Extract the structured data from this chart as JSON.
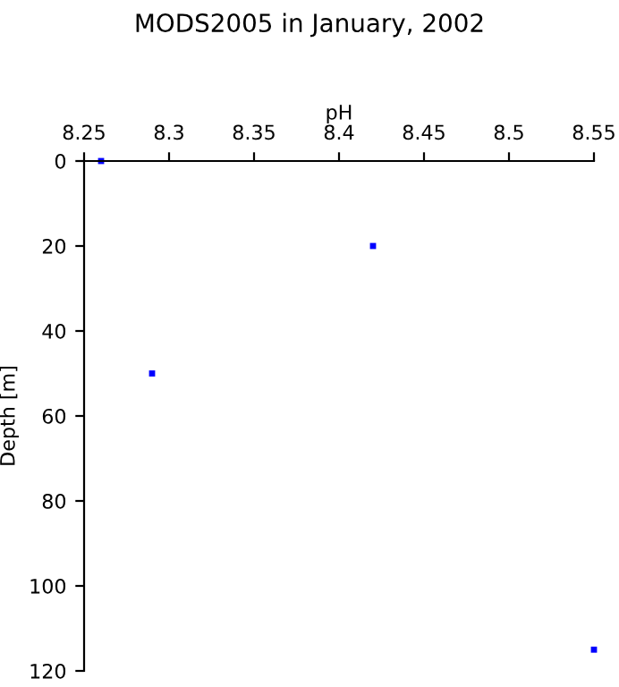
{
  "chart_data": {
    "type": "scatter",
    "title": "MODS2005 in January, 2002",
    "xlabel": "pH",
    "ylabel": "Depth [m]",
    "x": [
      8.26,
      8.42,
      8.29,
      8.55
    ],
    "series": [
      {
        "color": "#0000ff",
        "values": [
          0,
          20,
          50,
          115
        ]
      }
    ],
    "marker": "square",
    "grid": false,
    "legend": false,
    "xlim": [
      8.25,
      8.55
    ],
    "xticks": [
      8.25,
      8.3,
      8.35,
      8.4,
      8.45,
      8.5,
      8.55
    ],
    "ylim": [
      120,
      0
    ],
    "yticks": [
      0,
      20,
      40,
      60,
      80,
      100,
      120
    ]
  }
}
